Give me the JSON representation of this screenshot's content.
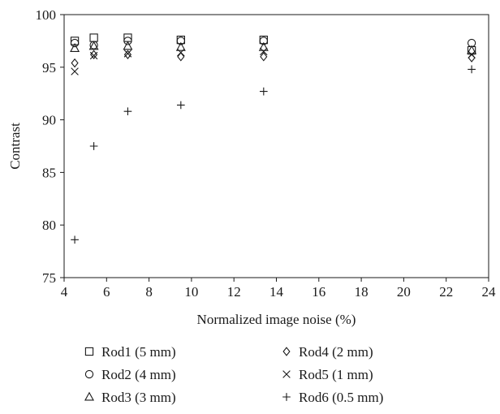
{
  "chart_data": {
    "type": "scatter",
    "title": "",
    "xlabel": "Normalized image noise (%)",
    "ylabel": "Contrast",
    "xlim": [
      4,
      24
    ],
    "ylim": [
      75,
      100
    ],
    "xticks": [
      4,
      6,
      8,
      10,
      12,
      14,
      16,
      18,
      20,
      22,
      24
    ],
    "yticks": [
      75,
      80,
      85,
      90,
      95,
      100
    ],
    "grid": false,
    "legend_position": "bottom",
    "series": [
      {
        "name": "Rod1 (5 mm)",
        "marker": "square",
        "x": [
          4.5,
          5.4,
          7.0,
          9.5,
          13.4,
          23.2
        ],
        "y": [
          97.5,
          97.8,
          97.8,
          97.6,
          97.6,
          96.6
        ]
      },
      {
        "name": "Rod2 (4 mm)",
        "marker": "circle",
        "x": [
          4.5,
          5.4,
          7.0,
          9.5,
          13.4,
          23.2
        ],
        "y": [
          97.3,
          97.1,
          97.5,
          97.5,
          97.5,
          97.3
        ]
      },
      {
        "name": "Rod3 (3 mm)",
        "marker": "triangle",
        "x": [
          4.5,
          5.4,
          7.0,
          9.5,
          13.4,
          23.2
        ],
        "y": [
          96.8,
          97.0,
          97.0,
          96.9,
          96.9,
          96.6
        ]
      },
      {
        "name": "Rod4 (2 mm)",
        "marker": "diamond",
        "x": [
          4.5,
          5.4,
          7.0,
          9.5,
          13.4,
          23.2
        ],
        "y": [
          95.4,
          96.2,
          96.2,
          96.0,
          96.0,
          95.9
        ]
      },
      {
        "name": "Rod5 (1 mm)",
        "marker": "x",
        "x": [
          4.5,
          5.4,
          7.0,
          9.5,
          13.4,
          23.2
        ],
        "y": [
          94.6,
          96.1,
          96.3,
          96.4,
          96.5,
          96.2
        ]
      },
      {
        "name": "Rod6 (0.5 mm)",
        "marker": "plus",
        "x": [
          4.5,
          5.4,
          7.0,
          9.5,
          13.4,
          23.2
        ],
        "y": [
          78.6,
          87.5,
          90.8,
          91.4,
          92.7,
          94.8
        ]
      }
    ]
  }
}
